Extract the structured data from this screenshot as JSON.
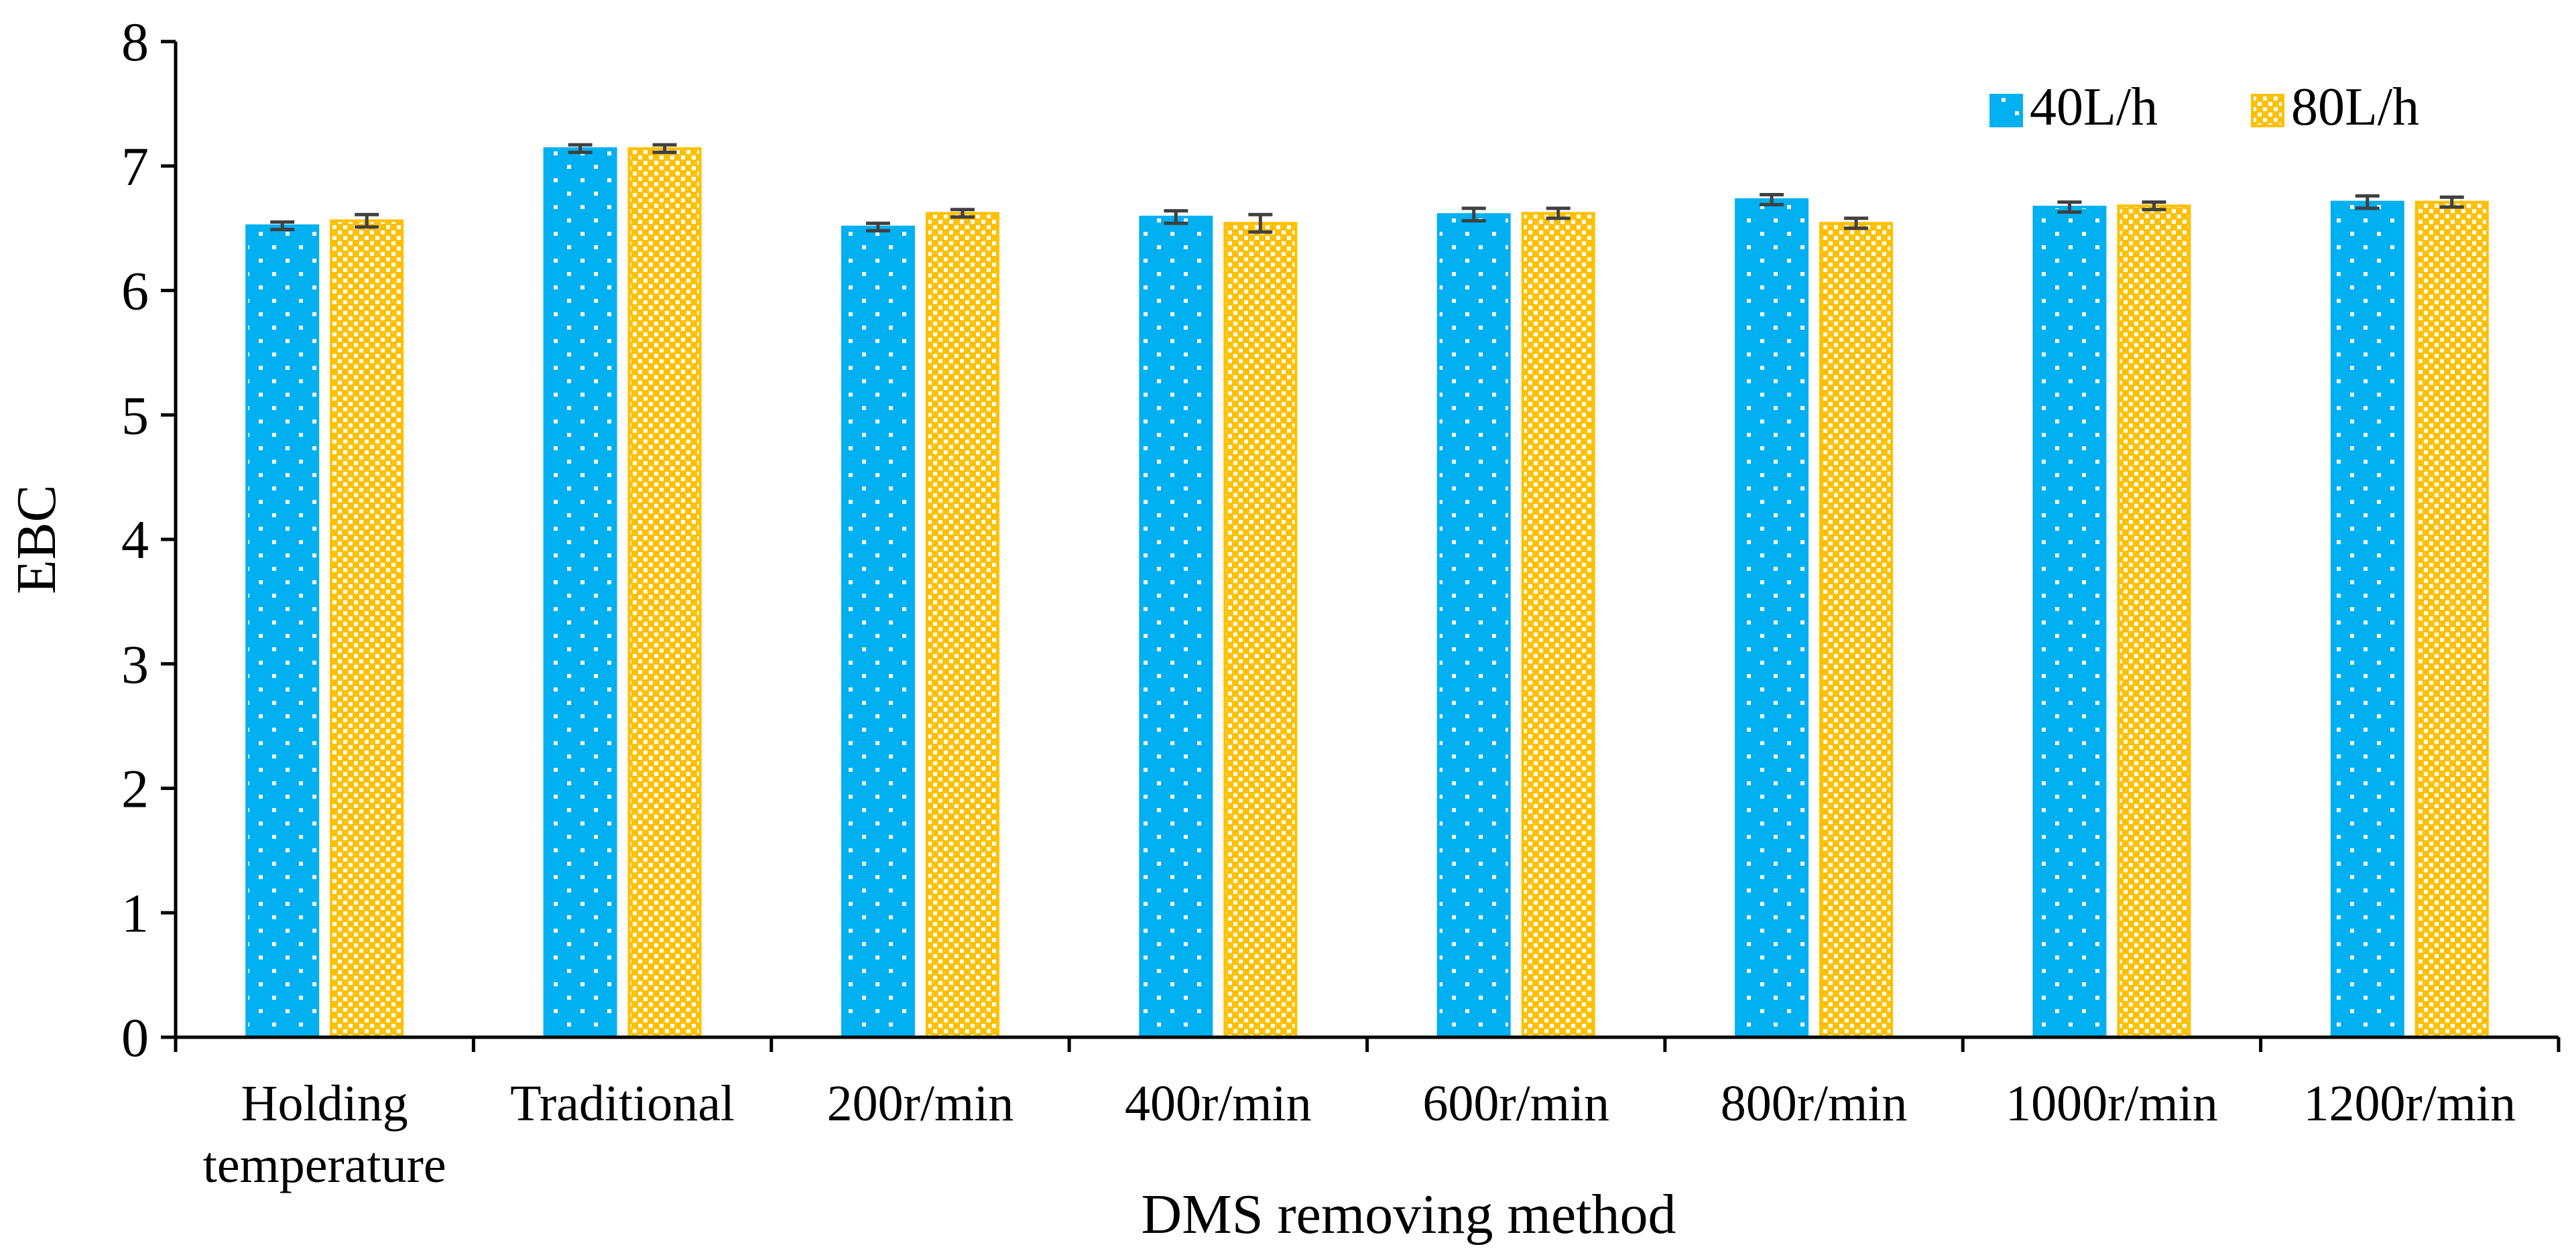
{
  "chart_data": {
    "type": "bar",
    "title": "",
    "xlabel": "DMS removing method",
    "ylabel": "EBC",
    "ylim": [
      0,
      8
    ],
    "yticks": [
      0,
      1,
      2,
      3,
      4,
      5,
      6,
      7,
      8
    ],
    "grid": false,
    "legend_position": "top-right",
    "categories": [
      [
        "Holding",
        "temperature"
      ],
      [
        "Traditional"
      ],
      [
        "200r/min"
      ],
      [
        "400r/min"
      ],
      [
        "600r/min"
      ],
      [
        "800r/min"
      ],
      [
        "1000r/min"
      ],
      [
        "1200r/min"
      ]
    ],
    "series": [
      {
        "name": "40L/h",
        "color": "#00b0f0",
        "pattern": "dots",
        "values": [
          6.52,
          7.14,
          6.51,
          6.59,
          6.61,
          6.73,
          6.67,
          6.71
        ],
        "errors": [
          0.03,
          0.03,
          0.03,
          0.05,
          0.05,
          0.04,
          0.04,
          0.05
        ]
      },
      {
        "name": "80L/h",
        "color": "#ffc000",
        "pattern": "checker",
        "values": [
          6.56,
          7.14,
          6.62,
          6.54,
          6.62,
          6.54,
          6.68,
          6.71
        ],
        "errors": [
          0.05,
          0.03,
          0.03,
          0.07,
          0.04,
          0.04,
          0.03,
          0.04
        ]
      }
    ]
  }
}
